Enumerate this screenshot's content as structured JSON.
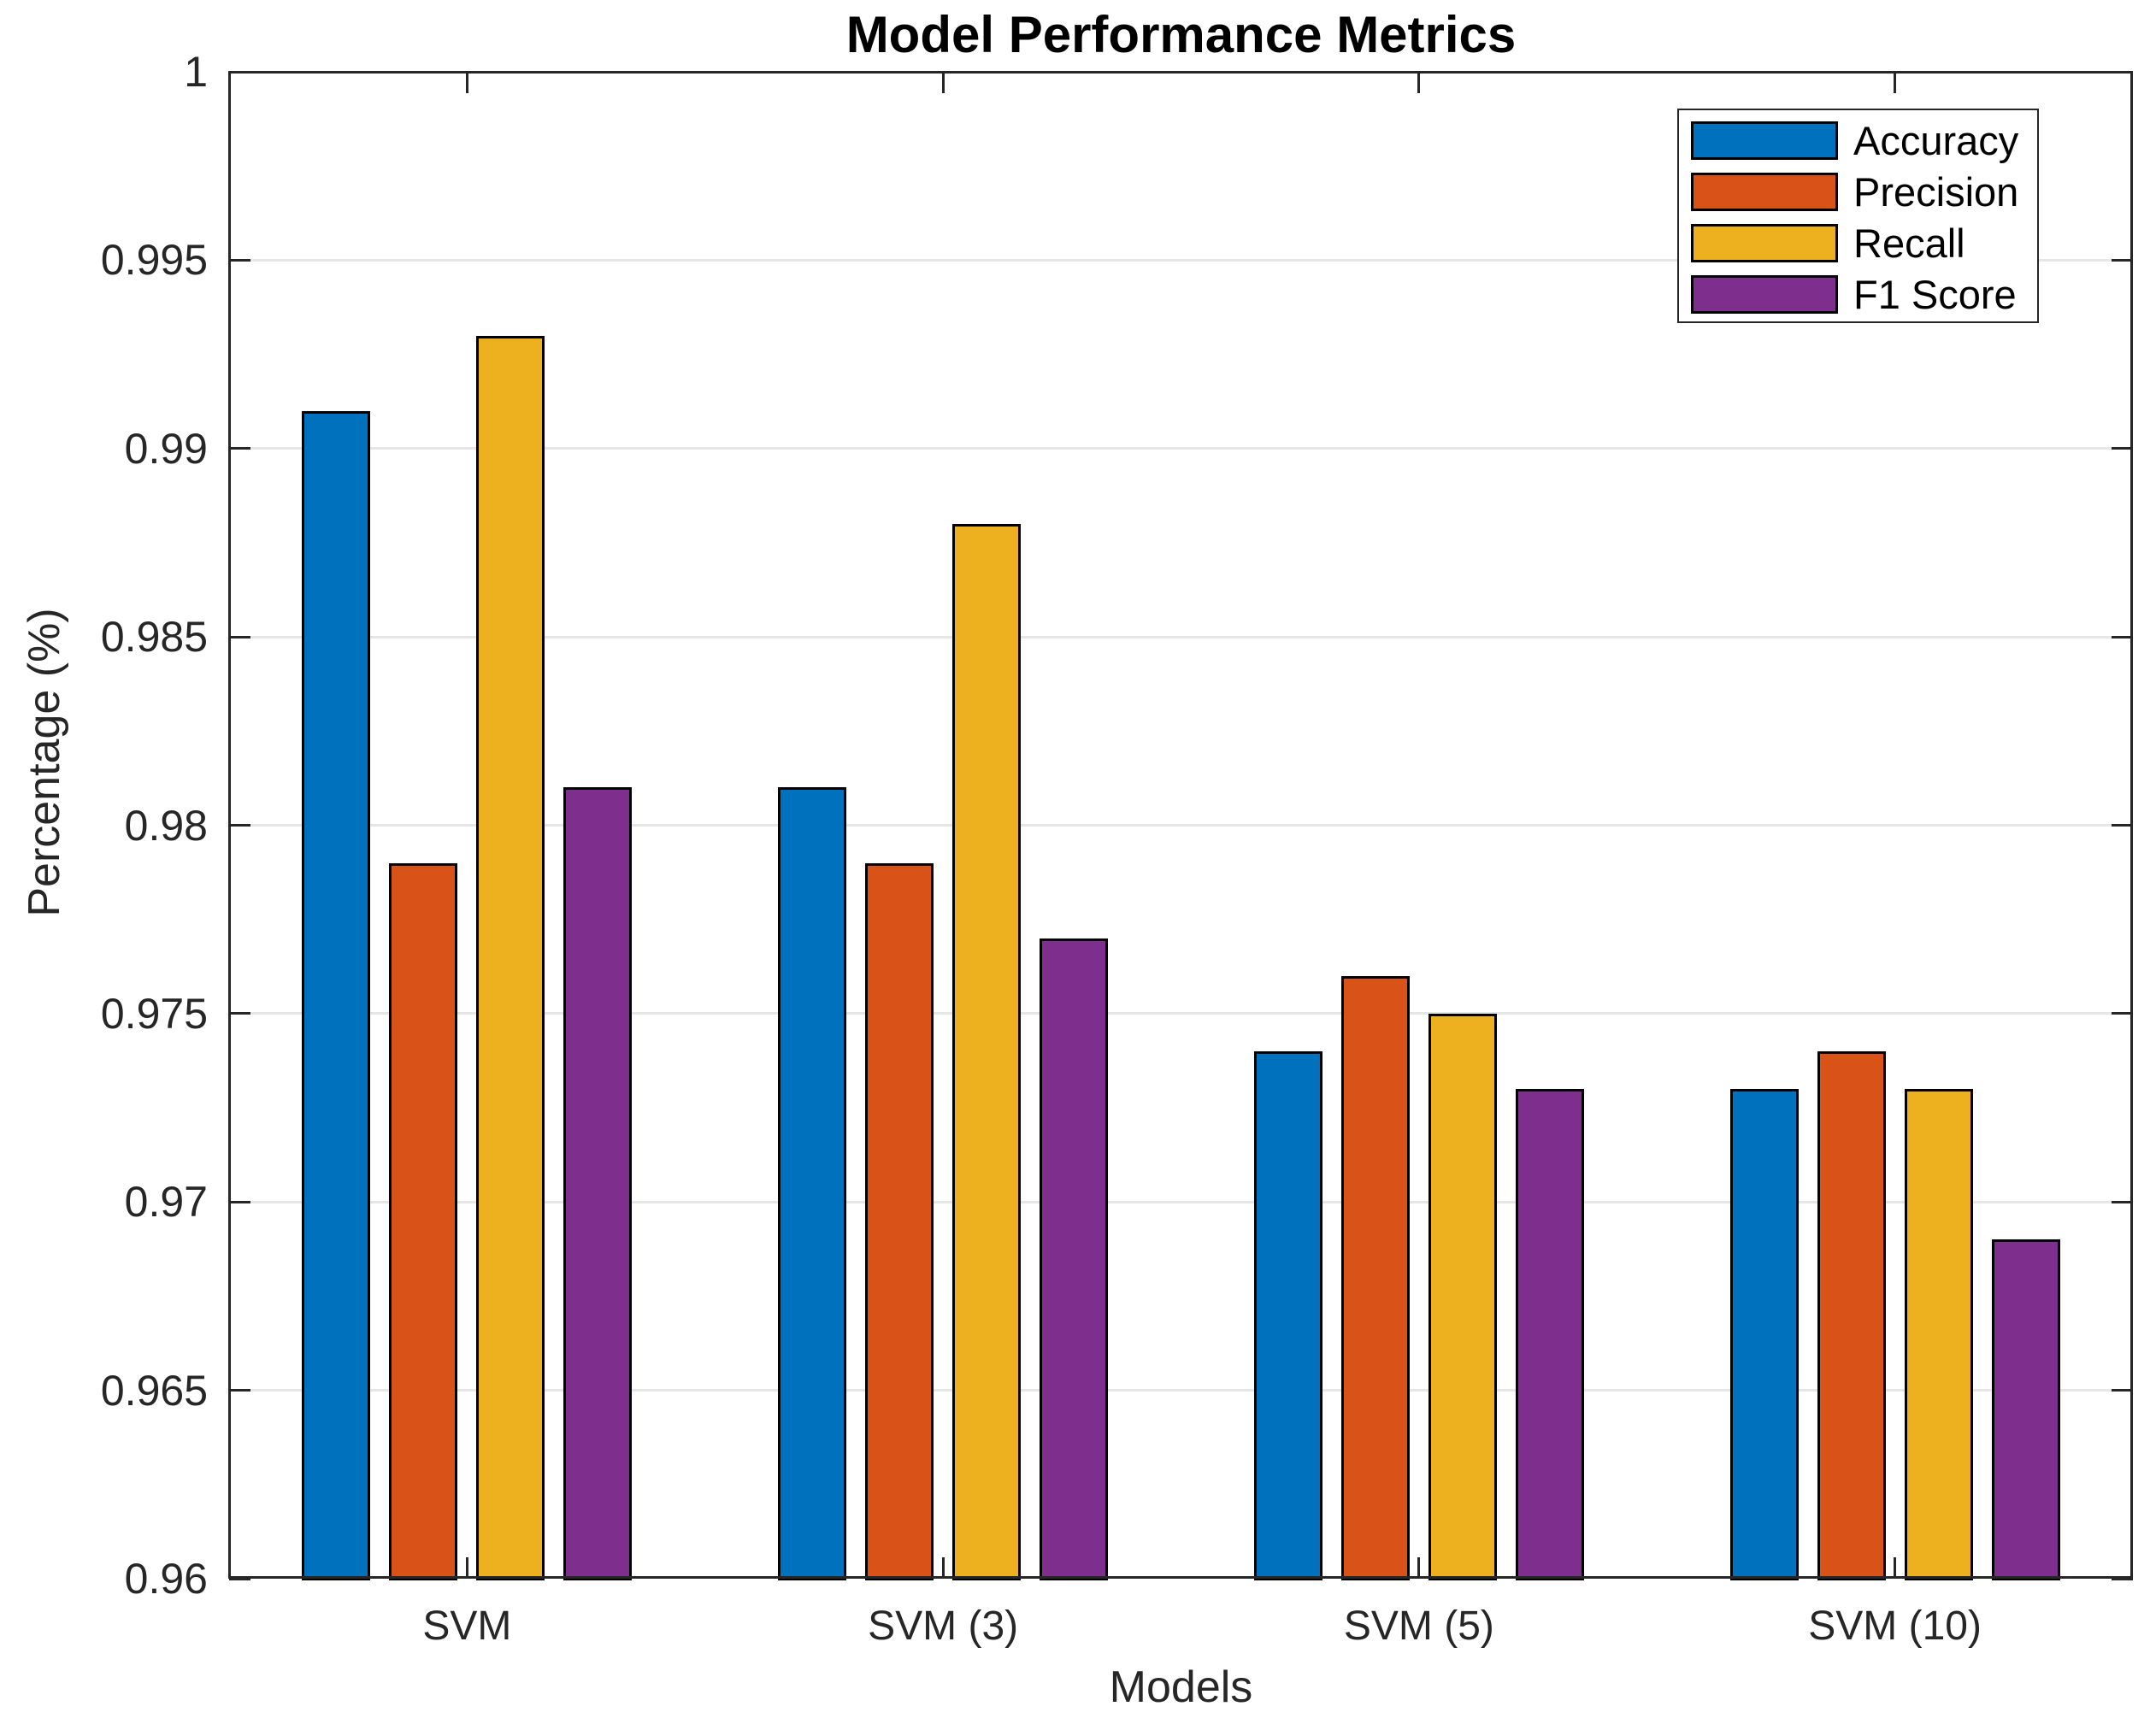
{
  "title": "Model Performance Metrics",
  "chart_data": {
    "type": "bar",
    "title": "Model Performance Metrics",
    "xlabel": "Models",
    "ylabel": "Percentage (%)",
    "categories": [
      "SVM",
      "SVM (3)",
      "SVM (5)",
      "SVM (10)"
    ],
    "series": [
      {
        "name": "Accuracy",
        "color": "#0072BD",
        "values": [
          0.991,
          0.981,
          0.974,
          0.973
        ]
      },
      {
        "name": "Precision",
        "color": "#D95319",
        "values": [
          0.979,
          0.979,
          0.976,
          0.974
        ]
      },
      {
        "name": "Recall",
        "color": "#EDB120",
        "values": [
          0.993,
          0.988,
          0.975,
          0.973
        ]
      },
      {
        "name": "F1 Score",
        "color": "#7E2F8E",
        "values": [
          0.981,
          0.977,
          0.973,
          0.969
        ]
      }
    ],
    "ylim": [
      0.96,
      1.0
    ],
    "yticks": [
      0.96,
      0.965,
      0.97,
      0.975,
      0.98,
      0.985,
      0.99,
      0.995,
      1
    ],
    "ytick_labels": [
      "0.96",
      "0.965",
      "0.97",
      "0.975",
      "0.98",
      "0.985",
      "0.99",
      "0.995",
      "1"
    ],
    "grid": "horizontal",
    "legend_position": "top-right",
    "colors": {
      "axis": "#262626",
      "grid": "#E6E6E6",
      "bar_edge": "#000000",
      "background": "#FFFFFF"
    }
  }
}
